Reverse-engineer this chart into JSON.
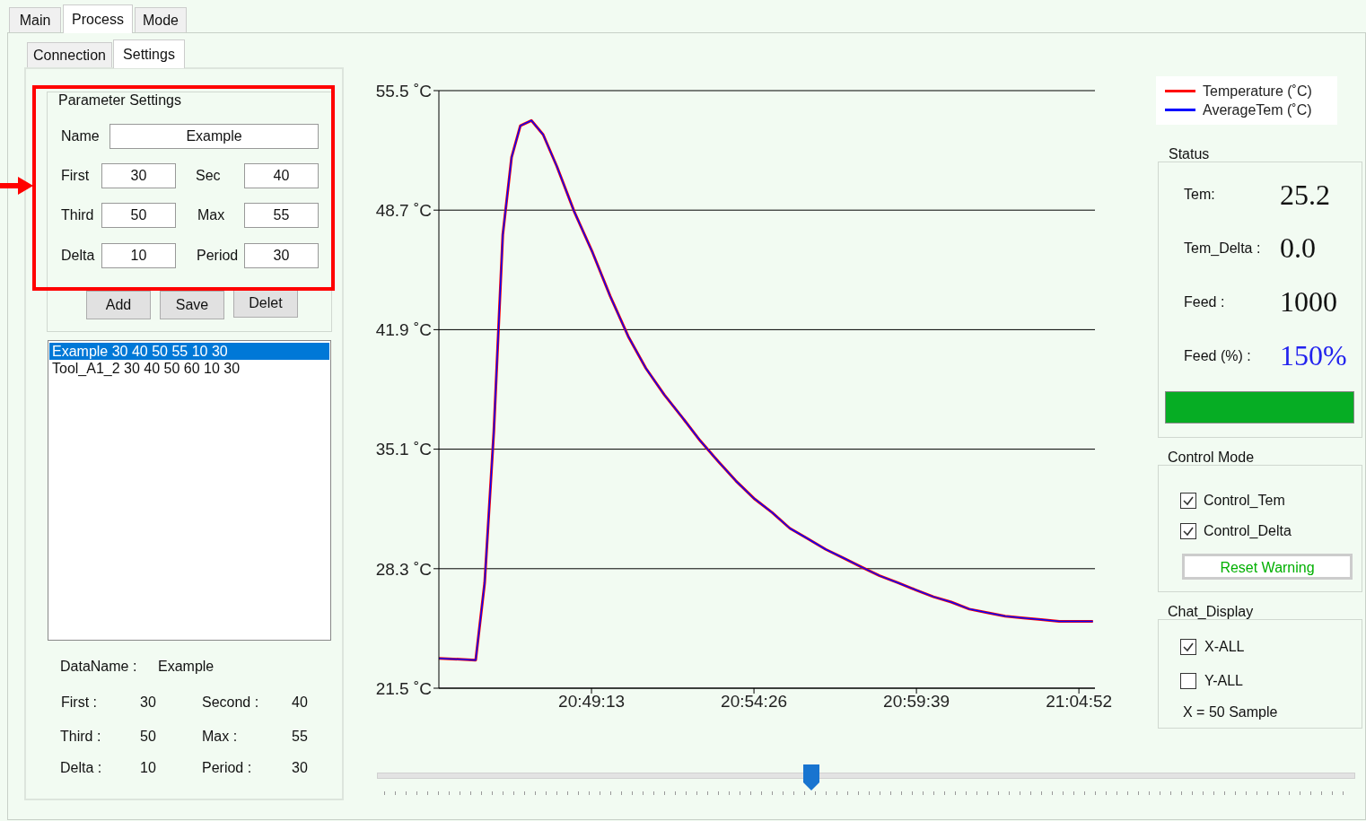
{
  "chart_data": [
    {
      "type": "other",
      "annotations": [
        "Main",
        "Process",
        "Mode",
        "Connection",
        "Settings",
        "Parameter Settings",
        "Name",
        "Example",
        "First",
        "30",
        "Sec",
        "40",
        "Third",
        "50",
        "Max",
        "55",
        "Delta",
        "10",
        "Period",
        "30",
        "Add",
        "Save",
        "Delet",
        "Example 30 40 50 55 10 30",
        "Tool_A1_2 30 40 50 60 10 30",
        "DataName :",
        "Example",
        "First :",
        "30",
        "Second :",
        "40",
        "Third :",
        "50",
        "Max :",
        "55",
        "Delta :",
        "10",
        "Period :",
        "30"
      ]
    },
    {
      "type": "line",
      "x": [
        20.7386,
        20.7583,
        20.7631,
        20.768,
        20.7728,
        20.7775,
        20.7822,
        20.7881,
        20.7944,
        20.8017,
        20.8111,
        20.8208,
        20.8303,
        20.84,
        20.8494,
        20.8592,
        20.8689,
        20.8783,
        20.8881,
        20.8975,
        20.9072,
        20.9169,
        20.9264,
        20.9361,
        20.9456,
        20.9553,
        20.9647,
        20.9744,
        20.9842,
        20.9936,
        21.0033,
        21.0128,
        21.0225,
        21.0319,
        21.0417,
        21.0514,
        21.0608,
        21.0706,
        21.08,
        21.0886
      ],
      "series": [
        {
          "name": "Temperature (˚C)",
          "color": "#ff0000",
          "values": [
            23.2,
            23.1,
            27.5,
            36.1,
            47.3,
            51.7,
            53.5,
            53.8,
            53.0,
            51.2,
            48.6,
            46.3,
            43.8,
            41.5,
            39.7,
            38.2,
            36.9,
            35.6,
            34.4,
            33.3,
            32.3,
            31.5,
            30.6,
            30.0,
            29.4,
            28.9,
            28.4,
            27.9,
            27.5,
            27.1,
            26.7,
            26.4,
            26.0,
            25.8,
            25.6,
            25.5,
            25.4,
            25.3,
            25.3,
            25.3
          ]
        },
        {
          "name": "AverageTem (˚C)",
          "color": "#0000ff",
          "values": [
            23.2,
            23.1,
            27.5,
            36.1,
            47.3,
            51.7,
            53.5,
            53.8,
            53.0,
            51.2,
            48.6,
            46.3,
            43.8,
            41.5,
            39.7,
            38.2,
            36.9,
            35.6,
            34.4,
            33.3,
            32.3,
            31.5,
            30.6,
            30.0,
            29.4,
            28.9,
            28.4,
            27.9,
            27.5,
            27.1,
            26.7,
            26.4,
            26.0,
            25.8,
            25.6,
            25.5,
            25.4,
            25.3,
            25.3,
            25.3
          ]
        }
      ],
      "xlim": [
        20.7386,
        21.0897
      ],
      "xticks": [
        {
          "value": 20.82028,
          "label": "20:49:13"
        },
        {
          "value": 20.90722,
          "label": "20:54:26"
        },
        {
          "value": 20.99417,
          "label": "20:59:39"
        },
        {
          "value": 21.08111,
          "label": "21:04:52"
        }
      ],
      "ylim": [
        21.5,
        55.5
      ],
      "yticks": [
        {
          "value": 21.5,
          "label": "21.5 ˚C"
        },
        {
          "value": 28.3,
          "label": "28.3 ˚C"
        },
        {
          "value": 35.1,
          "label": "35.1 ˚C"
        },
        {
          "value": 41.9,
          "label": "41.9 ˚C"
        },
        {
          "value": 48.7,
          "label": "48.7 ˚C"
        },
        {
          "value": 55.5,
          "label": "55.5 ˚C"
        }
      ],
      "grid": "y",
      "legend": "top right",
      "marker": "none",
      "line_style": "solid"
    },
    {
      "type": "other",
      "annotations": [
        "Status",
        "Tem:",
        "25.2",
        "Tem_Delta :",
        "0.0",
        "Feed :",
        "1000",
        "Feed (%) :",
        "150%",
        "Control Mode",
        "Control_Tem",
        "Control_Delta",
        "Reset Warning",
        "Chat_Display",
        "X-ALL",
        "Y-ALL",
        "X = 50 Sample"
      ]
    }
  ]
}
